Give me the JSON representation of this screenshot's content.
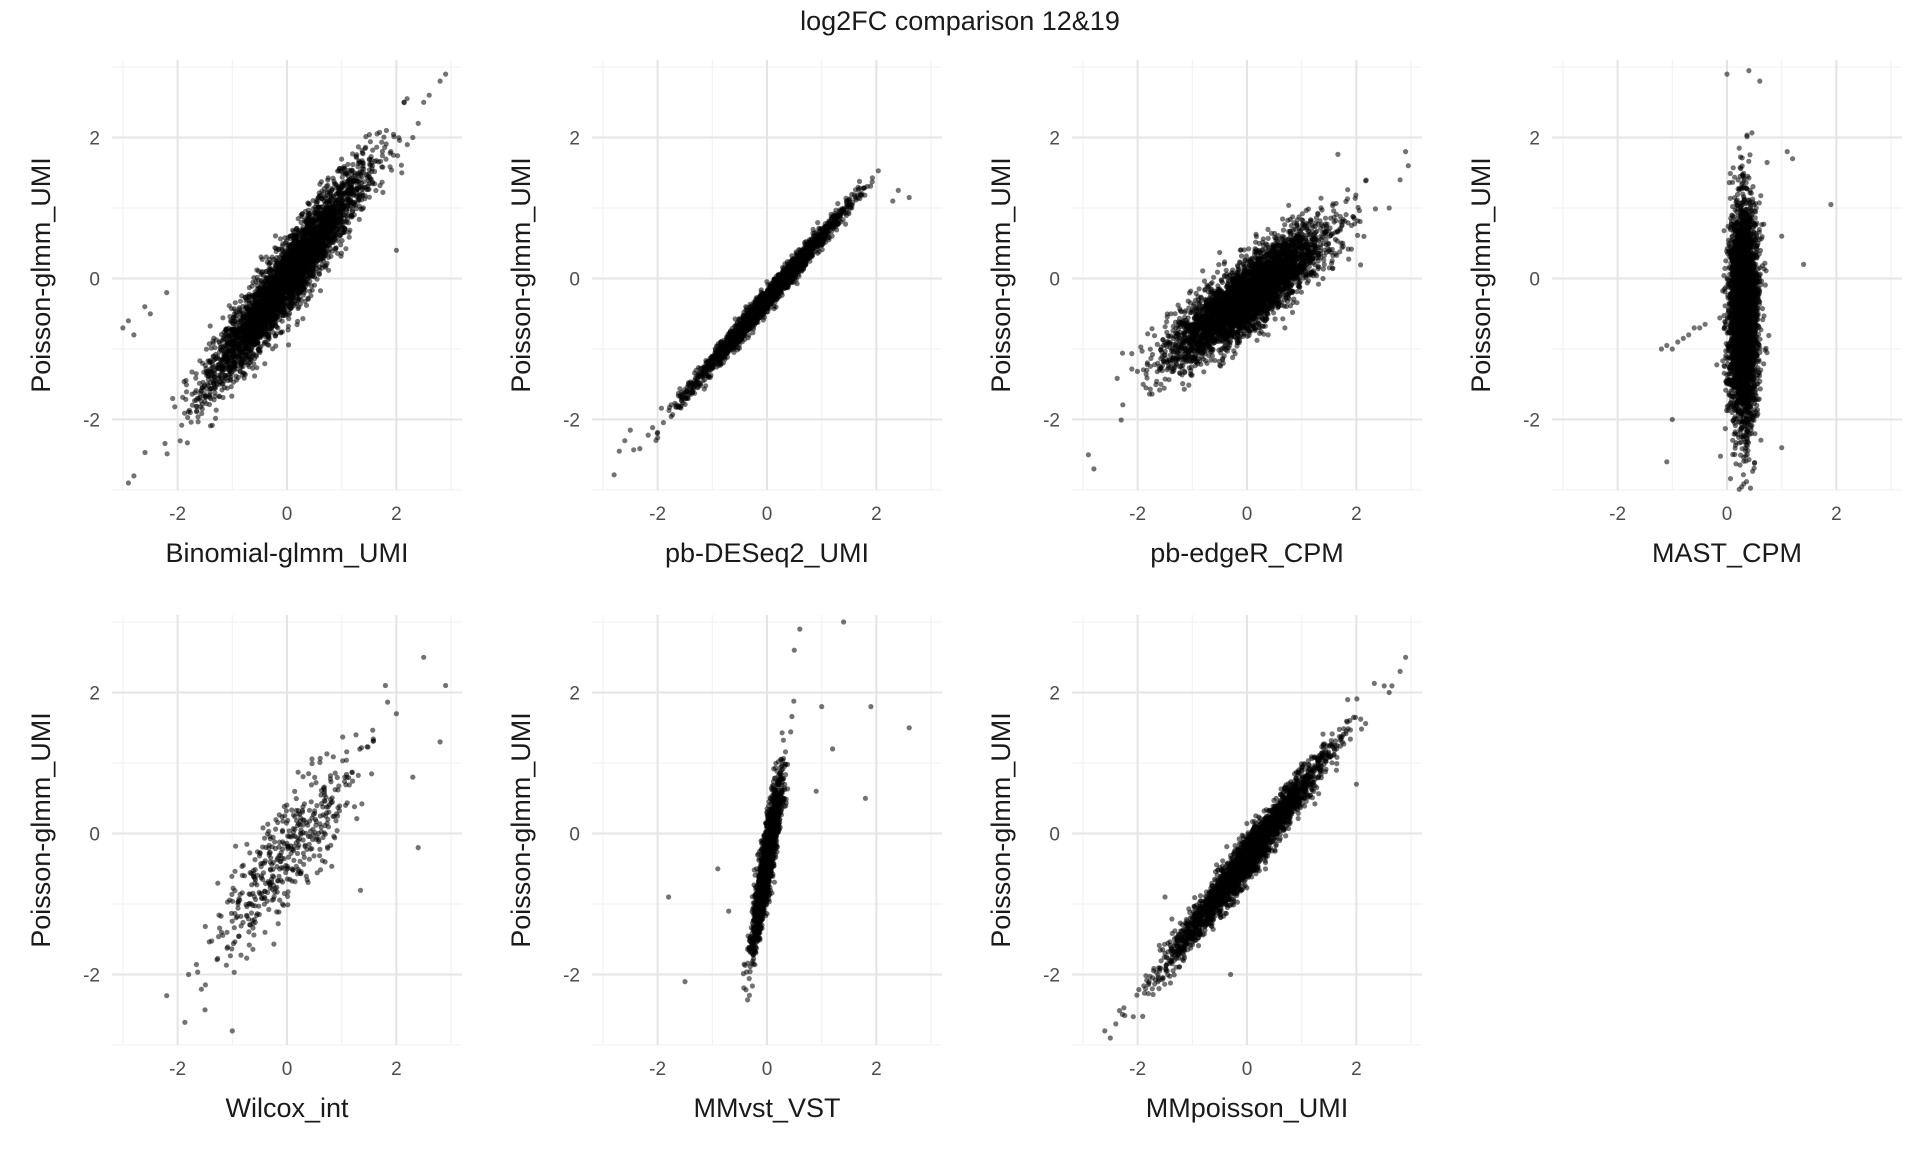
{
  "title": "log2FC comparison 12&19",
  "chart_data": [
    {
      "type": "scatter",
      "panel": "Binomial-glmm_UMI",
      "xlabel": "Binomial-glmm_UMI",
      "ylabel": "Poisson-glmm_UMI",
      "xlim": [
        -3.2,
        3.2
      ],
      "ylim": [
        -3.0,
        3.1
      ],
      "xticks": [
        -2,
        0,
        2
      ],
      "yticks": [
        -2,
        0,
        2
      ],
      "grid": true,
      "n_points": 4000,
      "point_color": "#000000",
      "trend": {
        "slope": 1.0,
        "intercept": 0.0,
        "spread": 0.25
      },
      "points": [
        [
          -3.0,
          -0.7
        ],
        [
          -2.9,
          -0.6
        ],
        [
          -2.8,
          -0.8
        ],
        [
          -2.6,
          -0.4
        ],
        [
          -2.5,
          -0.5
        ],
        [
          -2.2,
          -0.2
        ],
        [
          -2.9,
          -2.9
        ],
        [
          -2.8,
          -2.8
        ],
        [
          2.9,
          2.9
        ],
        [
          2.8,
          2.8
        ],
        [
          2.6,
          2.6
        ],
        [
          2.5,
          2.5
        ],
        [
          2.3,
          2.0
        ],
        [
          2.2,
          1.9
        ],
        [
          2.0,
          0.4
        ],
        [
          2.1,
          1.5
        ],
        [
          1.9,
          1.8
        ],
        [
          2.4,
          2.2
        ]
      ]
    },
    {
      "type": "scatter",
      "panel": "pb-DESeq2_UMI",
      "xlabel": "pb-DESeq2_UMI",
      "ylabel": "Poisson-glmm_UMI",
      "xlim": [
        -3.2,
        3.2
      ],
      "ylim": [
        -3.0,
        3.1
      ],
      "xticks": [
        -2,
        0,
        2
      ],
      "yticks": [
        -2,
        0,
        2
      ],
      "grid": true,
      "n_points": 2500,
      "point_color": "#000000",
      "trend": {
        "slope": 0.9,
        "intercept": -0.3,
        "spread": 0.08
      },
      "points": [
        [
          -2.7,
          -2.45
        ],
        [
          -2.6,
          -2.3
        ],
        [
          -2.5,
          -2.15
        ],
        [
          2.4,
          1.25
        ],
        [
          2.6,
          1.15
        ],
        [
          2.3,
          1.1
        ]
      ]
    },
    {
      "type": "scatter",
      "panel": "pb-edgeR_CPM",
      "xlabel": "pb-edgeR_CPM",
      "ylabel": "Poisson-glmm_UMI",
      "xlim": [
        -3.2,
        3.2
      ],
      "ylim": [
        -3.0,
        3.1
      ],
      "xticks": [
        -2,
        0,
        2
      ],
      "yticks": [
        -2,
        0,
        2
      ],
      "grid": true,
      "n_points": 4000,
      "point_color": "#000000",
      "trend": {
        "slope": 0.55,
        "intercept": -0.25,
        "spread": 0.25
      },
      "points": [
        [
          -2.9,
          -2.5
        ],
        [
          -2.8,
          -2.7
        ],
        [
          2.9,
          1.8
        ],
        [
          2.95,
          1.6
        ],
        [
          2.8,
          1.4
        ],
        [
          2.6,
          1.0
        ]
      ]
    },
    {
      "type": "scatter",
      "panel": "MAST_CPM",
      "xlabel": "MAST_CPM",
      "ylabel": "Poisson-glmm_UMI",
      "xlim": [
        -3.2,
        3.2
      ],
      "ylim": [
        -3.0,
        3.1
      ],
      "xticks": [
        -2,
        0,
        2
      ],
      "yticks": [
        -2,
        0,
        2
      ],
      "grid": true,
      "n_points": 4000,
      "point_color": "#000000",
      "cluster": {
        "x": 0.3,
        "x_spread": 0.13,
        "y": -0.5,
        "y_spread": 0.75
      },
      "points": [
        [
          -1.2,
          -1.0
        ],
        [
          -1.1,
          -0.95
        ],
        [
          -1.0,
          -1.0
        ],
        [
          -0.9,
          -0.9
        ],
        [
          -0.8,
          -0.85
        ],
        [
          -0.7,
          -0.8
        ],
        [
          -0.6,
          -0.7
        ],
        [
          -0.5,
          -0.7
        ],
        [
          -0.4,
          -0.65
        ],
        [
          -1.1,
          -2.6
        ],
        [
          -1.0,
          -2.0
        ],
        [
          0.0,
          2.9
        ],
        [
          0.4,
          2.95
        ],
        [
          0.6,
          2.8
        ],
        [
          1.1,
          1.8
        ],
        [
          1.2,
          1.7
        ],
        [
          1.4,
          0.2
        ],
        [
          1.9,
          1.05
        ],
        [
          1.0,
          0.6
        ],
        [
          1.0,
          -2.4
        ]
      ]
    },
    {
      "type": "scatter",
      "panel": "Wilcox_int",
      "xlabel": "Wilcox_int",
      "ylabel": "Poisson-glmm_UMI",
      "xlim": [
        -3.2,
        3.2
      ],
      "ylim": [
        -3.0,
        3.1
      ],
      "xticks": [
        -2,
        0,
        2
      ],
      "yticks": [
        -2,
        0,
        2
      ],
      "grid": true,
      "n_points": 450,
      "point_color": "#000000",
      "trend": {
        "slope": 0.95,
        "intercept": -0.3,
        "spread": 0.4
      },
      "points": [
        [
          -2.2,
          -2.3
        ],
        [
          -1.8,
          -2.0
        ],
        [
          -1.5,
          -2.5
        ],
        [
          -1.0,
          -2.8
        ],
        [
          2.5,
          2.5
        ],
        [
          2.9,
          2.1
        ],
        [
          1.8,
          2.1
        ],
        [
          2.0,
          1.7
        ],
        [
          2.3,
          0.8
        ],
        [
          2.4,
          -0.2
        ],
        [
          2.8,
          1.3
        ]
      ]
    },
    {
      "type": "scatter",
      "panel": "MMvst_VST",
      "xlabel": "MMvst_VST",
      "ylabel": "Poisson-glmm_UMI",
      "xlim": [
        -3.2,
        3.2
      ],
      "ylim": [
        -3.0,
        3.1
      ],
      "xticks": [
        -2,
        0,
        2
      ],
      "yticks": [
        -2,
        0,
        2
      ],
      "grid": true,
      "n_points": 1800,
      "point_color": "#000000",
      "trend": {
        "slope": 5.0,
        "intercept": -0.4,
        "spread": 0.25
      },
      "points": [
        [
          -1.8,
          -0.9
        ],
        [
          -1.5,
          -2.1
        ],
        [
          -0.7,
          -1.1
        ],
        [
          -0.9,
          -0.5
        ],
        [
          1.4,
          3.0
        ],
        [
          0.6,
          2.9
        ],
        [
          0.5,
          2.6
        ],
        [
          1.9,
          1.8
        ],
        [
          2.6,
          1.5
        ],
        [
          1.8,
          0.5
        ],
        [
          1.0,
          1.8
        ],
        [
          1.2,
          1.2
        ],
        [
          0.9,
          0.6
        ]
      ]
    },
    {
      "type": "scatter",
      "panel": "MMpoisson_UMI",
      "xlabel": "MMpoisson_UMI",
      "ylabel": "Poisson-glmm_UMI",
      "xlim": [
        -3.2,
        3.2
      ],
      "ylim": [
        -3.0,
        3.1
      ],
      "xticks": [
        -2,
        0,
        2
      ],
      "yticks": [
        -2,
        0,
        2
      ],
      "grid": true,
      "n_points": 2800,
      "point_color": "#000000",
      "trend": {
        "slope": 1.0,
        "intercept": -0.35,
        "spread": 0.15
      },
      "points": [
        [
          -2.6,
          -2.8
        ],
        [
          -2.5,
          -2.9
        ],
        [
          -2.4,
          -2.7
        ],
        [
          2.9,
          2.5
        ],
        [
          2.8,
          2.3
        ],
        [
          2.6,
          2.0
        ],
        [
          2.0,
          0.7
        ],
        [
          -0.3,
          -2.0
        ],
        [
          -1.5,
          -0.9
        ]
      ]
    }
  ]
}
